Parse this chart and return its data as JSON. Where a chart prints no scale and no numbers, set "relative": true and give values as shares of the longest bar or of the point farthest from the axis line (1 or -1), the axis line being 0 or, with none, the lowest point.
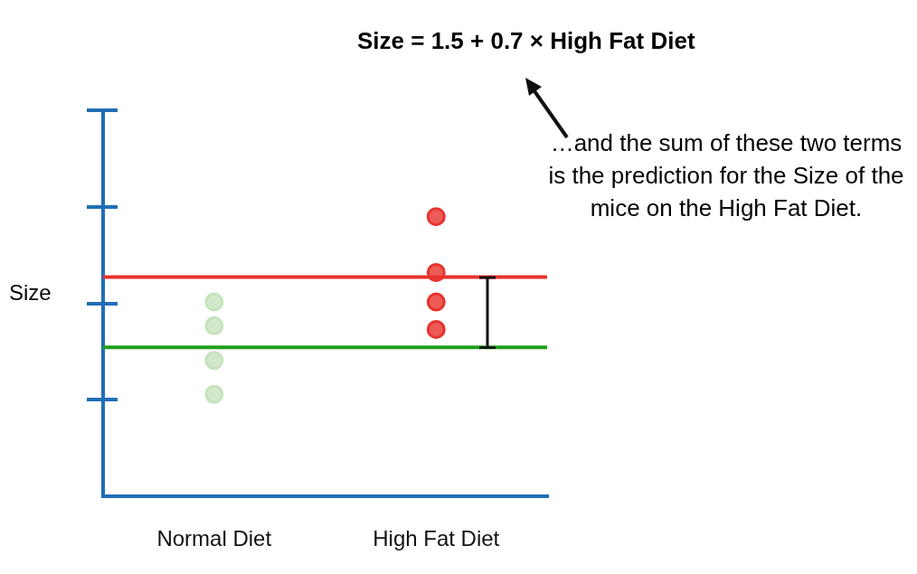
{
  "chart_data": {
    "type": "scatter",
    "relative": true,
    "title": "Size = 1.5 + 0.7 × High Fat Diet",
    "ylabel": "Size",
    "categories": [
      "Normal Diet",
      "High Fat Diet"
    ],
    "series": [
      {
        "x": [
          "Normal Diet",
          "Normal Diet",
          "Normal Diet",
          "Normal Diet",
          "High Fat Diet",
          "High Fat Diet",
          "High Fat Diet",
          "High Fat Diet"
        ],
        "values": [
          0.695,
          0.61,
          0.486,
          0.365,
          1,
          0.8,
          0.695,
          0.597
        ],
        "colors": [
          "#c5e3bd",
          "#c5e3bd",
          "#c5e3bd",
          "#c5e3bd",
          "#e8322d",
          "#e8322d",
          "#e8322d",
          "#e8322d"
        ]
      }
    ],
    "ref_lines": [
      {
        "axis": "y",
        "value": 0.533,
        "color": "#1fa01a"
      },
      {
        "axis": "y",
        "value": 0.784,
        "color": "#e8322d"
      }
    ],
    "annotations": [
      "…and the sum of these two terms is the prediction for the Size of the mice on the High Fat Diet."
    ],
    "marker": "circle",
    "grid": false,
    "legend": false
  }
}
